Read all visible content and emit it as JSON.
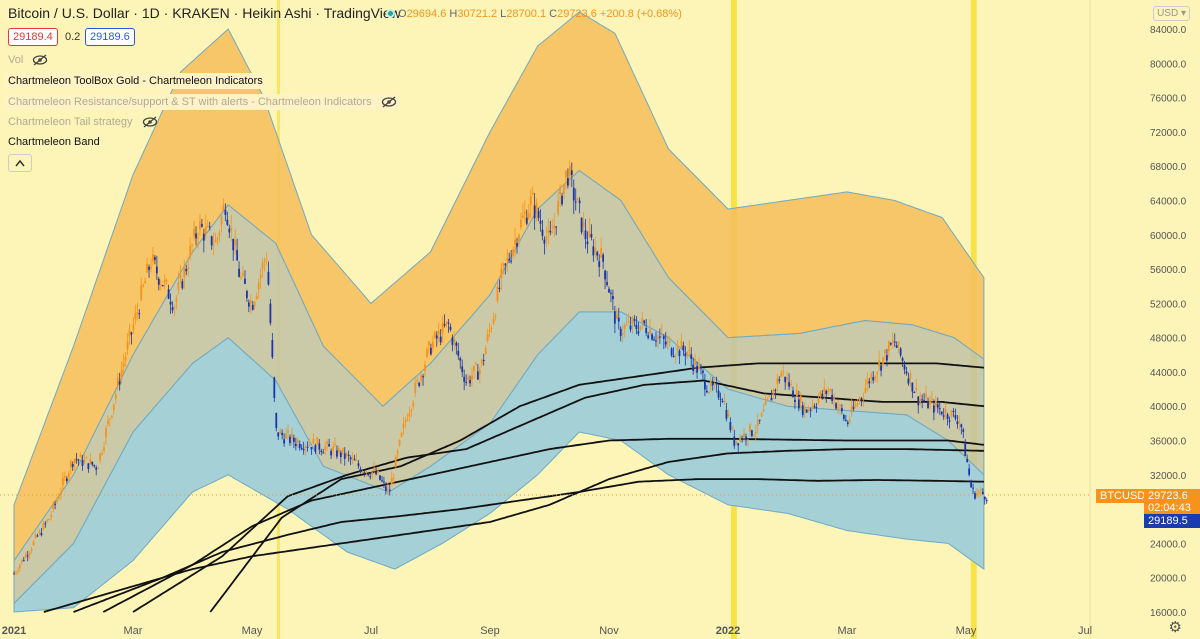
{
  "header": {
    "symbol": "Bitcoin / U.S. Dollar",
    "interval": "1D",
    "exchange": "KRAKEN",
    "chart_style": "Heikin Ashi",
    "source": "TradingView",
    "ohlc": {
      "o": "29694.6",
      "h": "30721.2",
      "l": "28700.1",
      "c": "29723.6",
      "chg": "+200.8 (+0.68%)"
    }
  },
  "quote": {
    "bid": "29189.4",
    "spread": "0.2",
    "ask": "29189.6"
  },
  "indicators": [
    {
      "label": "Vol",
      "hidden": true
    },
    {
      "label": "Chartmeleon ToolBox Gold - Chartmeleon Indicators",
      "hidden": false
    },
    {
      "label": "Chartmeleon Resistance/support & ST with alerts - Chartmeleon Indicators",
      "hidden": true
    },
    {
      "label": "Chartmeleon Tail strategy",
      "hidden": true
    },
    {
      "label": "Chartmeleon Band",
      "hidden": false
    }
  ],
  "currency_button": "USD",
  "price_tags": {
    "symbol": "BTCUSD",
    "last": "29723.6",
    "countdown": "02:04:43",
    "bid": "29189.5"
  },
  "colors": {
    "up": "#f7931a",
    "down": "#1a35a8",
    "upper_band": "#f5bd5a",
    "mid_band": "#c2c2a4",
    "lower_band": "#a5d0d6",
    "highlight": "#f7e03a"
  },
  "icons": {
    "eye_off": "eye-off-icon",
    "settings": "gear-icon",
    "collapse": "chevron-up-icon"
  },
  "chart_data": {
    "type": "candlestick",
    "title": "Bitcoin / U.S. Dollar",
    "y_ticks": [
      "84000.0",
      "80000.0",
      "76000.0",
      "72000.0",
      "68000.0",
      "64000.0",
      "60000.0",
      "56000.0",
      "52000.0",
      "48000.0",
      "44000.0",
      "40000.0",
      "36000.0",
      "32000.0",
      "28000.0",
      "24000.0",
      "20000.0",
      "16000.0"
    ],
    "x_ticks": [
      "2021",
      "Mar",
      "May",
      "Jul",
      "Sep",
      "Nov",
      "2022",
      "Mar",
      "May",
      "Jul"
    ],
    "ylim": [
      16000,
      86000
    ],
    "x_range_months": [
      "2021-01",
      "2022-07"
    ],
    "price_path": [
      {
        "t": 0,
        "p": 20500
      },
      {
        "t": 0.6,
        "p": 27000
      },
      {
        "t": 1.0,
        "p": 34000
      },
      {
        "t": 1.4,
        "p": 33000
      },
      {
        "t": 1.8,
        "p": 44000
      },
      {
        "t": 2.3,
        "p": 57000
      },
      {
        "t": 2.7,
        "p": 52000
      },
      {
        "t": 3.1,
        "p": 61000
      },
      {
        "t": 3.4,
        "p": 59000
      },
      {
        "t": 3.55,
        "p": 64000
      },
      {
        "t": 3.8,
        "p": 55000
      },
      {
        "t": 4.0,
        "p": 52000
      },
      {
        "t": 4.25,
        "p": 58000
      },
      {
        "t": 4.4,
        "p": 37000
      },
      {
        "t": 4.7,
        "p": 36000
      },
      {
        "t": 5.1,
        "p": 35500
      },
      {
        "t": 5.5,
        "p": 34500
      },
      {
        "t": 5.8,
        "p": 33000
      },
      {
        "t": 6.1,
        "p": 32000
      },
      {
        "t": 6.3,
        "p": 29800
      },
      {
        "t": 6.6,
        "p": 39000
      },
      {
        "t": 7.0,
        "p": 47000
      },
      {
        "t": 7.3,
        "p": 49500
      },
      {
        "t": 7.6,
        "p": 43000
      },
      {
        "t": 7.85,
        "p": 44500
      },
      {
        "t": 8.2,
        "p": 55000
      },
      {
        "t": 8.5,
        "p": 61000
      },
      {
        "t": 8.7,
        "p": 64000
      },
      {
        "t": 9.0,
        "p": 59000
      },
      {
        "t": 9.3,
        "p": 67500
      },
      {
        "t": 9.6,
        "p": 60000
      },
      {
        "t": 9.9,
        "p": 57000
      },
      {
        "t": 10.15,
        "p": 49000
      },
      {
        "t": 10.6,
        "p": 49500
      },
      {
        "t": 11.0,
        "p": 47000
      },
      {
        "t": 11.3,
        "p": 46500
      },
      {
        "t": 11.7,
        "p": 42000
      },
      {
        "t": 11.9,
        "p": 41500
      },
      {
        "t": 12.1,
        "p": 36000
      },
      {
        "t": 12.5,
        "p": 37500
      },
      {
        "t": 12.9,
        "p": 44000
      },
      {
        "t": 13.3,
        "p": 39500
      },
      {
        "t": 13.7,
        "p": 42000
      },
      {
        "t": 14.0,
        "p": 38000
      },
      {
        "t": 14.4,
        "p": 43500
      },
      {
        "t": 14.8,
        "p": 47500
      },
      {
        "t": 15.2,
        "p": 41000
      },
      {
        "t": 15.6,
        "p": 39500
      },
      {
        "t": 15.9,
        "p": 38500
      },
      {
        "t": 16.1,
        "p": 30000
      },
      {
        "t": 16.35,
        "p": 29700
      }
    ],
    "bands": {
      "upper_top": [
        [
          0,
          28500
        ],
        [
          1.0,
          47000
        ],
        [
          2.0,
          67000
        ],
        [
          2.8,
          79000
        ],
        [
          3.6,
          84000
        ],
        [
          4.2,
          76000
        ],
        [
          5.0,
          60000
        ],
        [
          6.0,
          52000
        ],
        [
          7.0,
          58000
        ],
        [
          8.0,
          72000
        ],
        [
          8.8,
          82000
        ],
        [
          9.5,
          86000
        ],
        [
          10.1,
          83500
        ],
        [
          11.0,
          70000
        ],
        [
          12.0,
          63000
        ],
        [
          13.0,
          64000
        ],
        [
          14.0,
          65000
        ],
        [
          14.8,
          64000
        ],
        [
          15.6,
          62000
        ],
        [
          16.3,
          55000
        ]
      ],
      "upper_bottom": [
        [
          0,
          22000
        ],
        [
          1.0,
          32000
        ],
        [
          2.0,
          46000
        ],
        [
          3.0,
          58000
        ],
        [
          3.6,
          63500
        ],
        [
          4.4,
          59000
        ],
        [
          5.2,
          47000
        ],
        [
          6.2,
          40000
        ],
        [
          7.0,
          45000
        ],
        [
          8.0,
          53000
        ],
        [
          8.8,
          63000
        ],
        [
          9.5,
          67500
        ],
        [
          10.2,
          64000
        ],
        [
          11.0,
          55000
        ],
        [
          12.0,
          48000
        ],
        [
          13.2,
          48500
        ],
        [
          14.3,
          50000
        ],
        [
          15.1,
          49500
        ],
        [
          15.8,
          48000
        ],
        [
          16.3,
          45500
        ]
      ],
      "lower_top": [
        [
          0,
          17000
        ],
        [
          1.0,
          24000
        ],
        [
          2.0,
          37000
        ],
        [
          3.0,
          45000
        ],
        [
          3.6,
          48000
        ],
        [
          4.4,
          43000
        ],
        [
          5.2,
          33000
        ],
        [
          6.3,
          30000
        ],
        [
          7.0,
          33000
        ],
        [
          8.0,
          38000
        ],
        [
          8.8,
          46000
        ],
        [
          9.5,
          51000
        ],
        [
          10.2,
          51000
        ],
        [
          11.0,
          48000
        ],
        [
          12.0,
          42000
        ],
        [
          13.0,
          40000
        ],
        [
          14.0,
          39500
        ],
        [
          15.0,
          39000
        ],
        [
          15.7,
          36000
        ],
        [
          16.3,
          32000
        ]
      ],
      "lower_bottom": [
        [
          0,
          16000
        ],
        [
          1.0,
          16500
        ],
        [
          2.0,
          22000
        ],
        [
          3.0,
          30000
        ],
        [
          3.6,
          32000
        ],
        [
          4.6,
          28000
        ],
        [
          5.6,
          23000
        ],
        [
          6.4,
          21000
        ],
        [
          7.2,
          24000
        ],
        [
          8.0,
          27500
        ],
        [
          8.8,
          32000
        ],
        [
          9.5,
          37000
        ],
        [
          10.2,
          36000
        ],
        [
          11.0,
          32000
        ],
        [
          12.0,
          28500
        ],
        [
          13.0,
          27500
        ],
        [
          14.0,
          25500
        ],
        [
          15.0,
          24500
        ],
        [
          15.7,
          24000
        ],
        [
          16.3,
          21000
        ]
      ]
    },
    "moving_averages": [
      {
        "name": "",
        "values": [
          [
            3.3,
            16000
          ],
          [
            4.5,
            27000
          ],
          [
            5.5,
            31500
          ],
          [
            6.5,
            33000
          ],
          [
            7.5,
            36000
          ],
          [
            8.5,
            40000
          ],
          [
            9.5,
            42500
          ],
          [
            10.5,
            43500
          ],
          [
            11.5,
            44500
          ],
          [
            12.5,
            45000
          ],
          [
            13.5,
            45000
          ],
          [
            14.5,
            45000
          ],
          [
            15.5,
            45000
          ],
          [
            16.3,
            44500
          ]
        ]
      },
      {
        "name": "",
        "values": [
          [
            2.0,
            16000
          ],
          [
            3.5,
            22500
          ],
          [
            4.6,
            29500
          ],
          [
            5.6,
            32000
          ],
          [
            6.6,
            34000
          ],
          [
            7.6,
            35000
          ],
          [
            8.6,
            38000
          ],
          [
            9.6,
            41000
          ],
          [
            10.6,
            42500
          ],
          [
            11.6,
            43000
          ],
          [
            12.6,
            41500
          ],
          [
            13.6,
            41000
          ],
          [
            14.6,
            40500
          ],
          [
            15.6,
            40500
          ],
          [
            16.3,
            40000
          ]
        ]
      },
      {
        "name": "",
        "values": [
          [
            1.5,
            16000
          ],
          [
            3.0,
            21500
          ],
          [
            4.0,
            26000
          ],
          [
            5.0,
            29000
          ],
          [
            6.0,
            30500
          ],
          [
            7.0,
            32000
          ],
          [
            8.0,
            33500
          ],
          [
            9.0,
            35000
          ],
          [
            10.0,
            36000
          ],
          [
            11.0,
            36200
          ],
          [
            12.0,
            36200
          ],
          [
            13.0,
            36100
          ],
          [
            14.0,
            36000
          ],
          [
            15.0,
            36000
          ],
          [
            15.7,
            36000
          ],
          [
            16.3,
            35500
          ]
        ]
      },
      {
        "name": "",
        "values": [
          [
            1.0,
            16000
          ],
          [
            2.5,
            20000
          ],
          [
            3.5,
            23000
          ],
          [
            4.6,
            25000
          ],
          [
            5.5,
            26500
          ],
          [
            6.5,
            27200
          ],
          [
            7.5,
            28000
          ],
          [
            8.5,
            29000
          ],
          [
            9.5,
            30000
          ],
          [
            10.5,
            31200
          ],
          [
            11.5,
            31500
          ],
          [
            12.5,
            31500
          ],
          [
            13.5,
            31300
          ],
          [
            14.5,
            31400
          ],
          [
            15.5,
            31300
          ],
          [
            16.3,
            31200
          ]
        ]
      },
      {
        "name": "",
        "values": [
          [
            0.5,
            16000
          ],
          [
            2.0,
            19000
          ],
          [
            3.0,
            21000
          ],
          [
            4.0,
            22500
          ],
          [
            5.0,
            23500
          ],
          [
            6.0,
            24500
          ],
          [
            7.0,
            25500
          ],
          [
            8.0,
            26500
          ],
          [
            9.0,
            28500
          ],
          [
            10.0,
            31500
          ],
          [
            11.0,
            33500
          ],
          [
            12.0,
            34500
          ],
          [
            13.0,
            34800
          ],
          [
            14.0,
            35000
          ],
          [
            15.0,
            35000
          ],
          [
            16.3,
            34800
          ]
        ]
      }
    ],
    "highlight_bands": [
      {
        "t_start": 12.05,
        "t_end": 12.15
      },
      {
        "t_start": 16.08,
        "t_end": 16.18
      },
      {
        "t_start": 4.42,
        "t_end": 4.46
      }
    ]
  }
}
